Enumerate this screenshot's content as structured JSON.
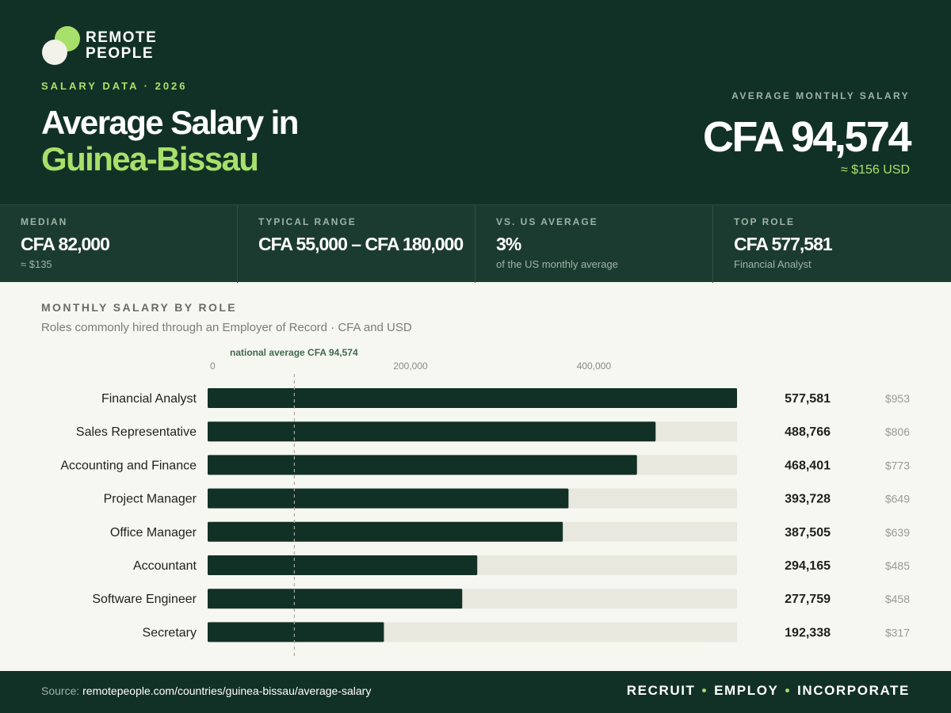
{
  "brand": {
    "line1": "REMOTE",
    "line2": "PEOPLE"
  },
  "header": {
    "eyebrow": "SALARY DATA · 2026",
    "title_line1": "Average Salary in",
    "title_line2": "Guinea-Bissau",
    "hero_label": "AVERAGE MONTHLY SALARY",
    "hero_value": "CFA 94,574",
    "hero_usd": "≈ $156 USD"
  },
  "stats": [
    {
      "label": "MEDIAN",
      "value": "CFA 82,000",
      "sub": "≈ $135"
    },
    {
      "label": "TYPICAL RANGE",
      "value": "CFA 55,000 – CFA 180,000",
      "sub": ""
    },
    {
      "label": "VS. US AVERAGE",
      "value": "3%",
      "sub": "of the US monthly average"
    },
    {
      "label": "TOP ROLE",
      "value": "CFA 577,581",
      "sub": "Financial Analyst"
    }
  ],
  "chart_data": {
    "type": "bar",
    "orientation": "horizontal",
    "title": "MONTHLY SALARY BY ROLE",
    "subtitle": "Roles commonly hired through an Employer of Record · CFA and USD",
    "xlim": [
      0,
      577581
    ],
    "x_ticks": [
      0,
      200000,
      400000
    ],
    "x_tick_labels": [
      "0",
      "200,000",
      "400,000"
    ],
    "reference_line": {
      "value": 94574,
      "label": "national average CFA 94,574"
    },
    "categories": [
      "Financial Analyst",
      "Sales Representative",
      "Accounting and Finance",
      "Project Manager",
      "Office Manager",
      "Accountant",
      "Software Engineer",
      "Secretary"
    ],
    "values": [
      577581,
      488766,
      468401,
      393728,
      387505,
      294165,
      277759,
      192338
    ],
    "value_labels": [
      "577,581",
      "488,766",
      "468,401",
      "393,728",
      "387,505",
      "294,165",
      "277,759",
      "192,338"
    ],
    "usd_labels": [
      "$953",
      "$806",
      "$773",
      "$649",
      "$639",
      "$485",
      "$458",
      "$317"
    ],
    "colors": {
      "bar": "#123126",
      "track": "#e8e8df",
      "reference": "#a8a8a0"
    }
  },
  "footer": {
    "source_prefix": "Source:",
    "source_url": "remotepeople.com/countries/guinea-bissau/average-salary",
    "tagline": [
      "RECRUIT",
      "EMPLOY",
      "INCORPORATE"
    ]
  }
}
